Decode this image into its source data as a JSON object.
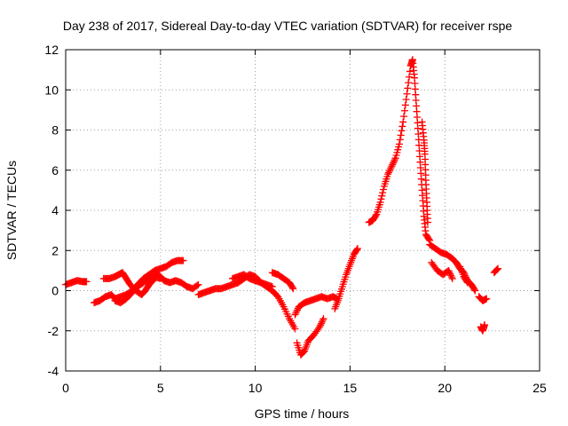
{
  "chart_data": {
    "type": "scatter",
    "title": "Day 238 of 2017, Sidereal Day-to-day VTEC variation (SDTVAR) for receiver rspe",
    "xlabel": "GPS time / hours",
    "ylabel": "SDTVAR / TECUs",
    "xlim": [
      0,
      25
    ],
    "ylim": [
      -4,
      12
    ],
    "xticks": [
      "0",
      "5",
      "10",
      "15",
      "20",
      "25"
    ],
    "yticks": [
      "-4",
      "-2",
      "0",
      "2",
      "4",
      "6",
      "8",
      "10",
      "12"
    ],
    "grid": true,
    "marker": "+",
    "color": "#ff0000",
    "series": [
      {
        "name": "segment-1",
        "points": [
          [
            0.0,
            0.3
          ],
          [
            0.3,
            0.4
          ],
          [
            0.6,
            0.5
          ],
          [
            0.9,
            0.45
          ],
          [
            1.1,
            0.45
          ]
        ]
      },
      {
        "name": "segment-2",
        "points": [
          [
            1.5,
            -0.6
          ],
          [
            1.8,
            -0.5
          ],
          [
            2.1,
            -0.3
          ],
          [
            2.4,
            -0.2
          ],
          [
            2.6,
            -0.4
          ],
          [
            2.9,
            -0.3
          ],
          [
            3.2,
            -0.2
          ],
          [
            3.5,
            0.0
          ],
          [
            3.8,
            0.3
          ],
          [
            4.1,
            0.6
          ],
          [
            4.4,
            0.8
          ],
          [
            4.7,
            1.0
          ],
          [
            5.0,
            1.1
          ],
          [
            5.3,
            1.2
          ],
          [
            5.6,
            1.4
          ],
          [
            5.9,
            1.5
          ],
          [
            6.2,
            1.5
          ]
        ]
      },
      {
        "name": "segment-3",
        "points": [
          [
            2.0,
            0.6
          ],
          [
            2.3,
            0.6
          ],
          [
            2.6,
            0.7
          ],
          [
            2.8,
            0.8
          ],
          [
            3.0,
            0.9
          ],
          [
            3.2,
            0.6
          ],
          [
            3.4,
            0.3
          ],
          [
            3.7,
            0.0
          ],
          [
            4.0,
            -0.2
          ],
          [
            4.2,
            0.0
          ],
          [
            4.4,
            0.3
          ],
          [
            4.6,
            0.5
          ],
          [
            4.8,
            0.8
          ],
          [
            5.0,
            0.7
          ],
          [
            5.2,
            0.5
          ],
          [
            5.5,
            0.4
          ],
          [
            5.8,
            0.5
          ],
          [
            6.1,
            0.4
          ],
          [
            6.4,
            0.2
          ],
          [
            6.7,
            0.1
          ],
          [
            7.0,
            0.3
          ]
        ]
      },
      {
        "name": "segment-4",
        "points": [
          [
            2.6,
            -0.5
          ],
          [
            2.9,
            -0.6
          ],
          [
            3.2,
            -0.4
          ],
          [
            3.5,
            -0.1
          ],
          [
            3.8,
            0.2
          ],
          [
            4.1,
            0.4
          ],
          [
            4.4,
            0.6
          ],
          [
            4.7,
            0.7
          ],
          [
            5.0,
            0.6
          ]
        ]
      },
      {
        "name": "segment-5",
        "points": [
          [
            7.0,
            -0.2
          ],
          [
            7.3,
            -0.1
          ],
          [
            7.6,
            0.0
          ],
          [
            7.9,
            0.1
          ],
          [
            8.2,
            0.1
          ],
          [
            8.5,
            0.2
          ],
          [
            8.8,
            0.3
          ],
          [
            9.1,
            0.4
          ],
          [
            9.4,
            0.6
          ],
          [
            9.7,
            0.8
          ],
          [
            10.0,
            0.7
          ],
          [
            10.3,
            0.4
          ],
          [
            10.6,
            0.2
          ],
          [
            10.9,
            0.0
          ],
          [
            11.2,
            -0.3
          ],
          [
            11.5,
            -0.8
          ],
          [
            11.8,
            -1.4
          ],
          [
            12.1,
            -1.9
          ]
        ]
      },
      {
        "name": "segment-6",
        "points": [
          [
            8.8,
            0.6
          ],
          [
            9.1,
            0.7
          ],
          [
            9.4,
            0.8
          ],
          [
            9.7,
            0.6
          ],
          [
            10.0,
            0.5
          ],
          [
            10.3,
            0.4
          ],
          [
            10.6,
            0.3
          ],
          [
            10.9,
            0.2
          ]
        ]
      },
      {
        "name": "segment-7",
        "points": [
          [
            10.9,
            0.9
          ],
          [
            11.2,
            0.8
          ],
          [
            11.5,
            0.6
          ],
          [
            11.8,
            0.4
          ],
          [
            12.0,
            0.1
          ]
        ]
      },
      {
        "name": "segment-8",
        "points": [
          [
            12.2,
            -2.6
          ],
          [
            12.4,
            -3.2
          ],
          [
            12.6,
            -3.0
          ],
          [
            12.8,
            -2.5
          ],
          [
            13.1,
            -2.2
          ],
          [
            13.4,
            -1.8
          ],
          [
            13.6,
            -1.4
          ]
        ]
      },
      {
        "name": "segment-9",
        "points": [
          [
            12.1,
            -1.2
          ],
          [
            12.3,
            -0.8
          ],
          [
            12.6,
            -0.6
          ],
          [
            12.9,
            -0.5
          ],
          [
            13.2,
            -0.4
          ],
          [
            13.5,
            -0.3
          ],
          [
            13.8,
            -0.4
          ],
          [
            14.1,
            -0.3
          ],
          [
            14.3,
            -0.4
          ]
        ]
      },
      {
        "name": "segment-10",
        "points": [
          [
            14.2,
            -0.9
          ],
          [
            14.4,
            -0.4
          ],
          [
            14.6,
            0.2
          ],
          [
            14.8,
            0.8
          ],
          [
            15.0,
            1.3
          ],
          [
            15.2,
            1.8
          ],
          [
            15.4,
            2.1
          ]
        ]
      },
      {
        "name": "segment-11",
        "points": [
          [
            16.0,
            3.4
          ],
          [
            16.2,
            3.5
          ],
          [
            16.4,
            3.8
          ],
          [
            16.6,
            4.4
          ],
          [
            16.8,
            5.2
          ],
          [
            17.0,
            5.8
          ],
          [
            17.2,
            6.2
          ],
          [
            17.4,
            6.6
          ],
          [
            17.6,
            7.3
          ],
          [
            17.8,
            8.4
          ],
          [
            18.0,
            9.8
          ],
          [
            18.2,
            11.2
          ],
          [
            18.3,
            11.5
          ]
        ]
      },
      {
        "name": "segment-12",
        "points": [
          [
            18.3,
            11.5
          ],
          [
            18.4,
            10.6
          ],
          [
            18.5,
            9.2
          ],
          [
            18.6,
            7.8
          ],
          [
            18.7,
            6.4
          ],
          [
            18.8,
            5.0
          ],
          [
            18.9,
            3.7
          ],
          [
            19.0,
            2.8
          ],
          [
            19.2,
            2.5
          ]
        ]
      },
      {
        "name": "segment-13",
        "points": [
          [
            18.8,
            8.4
          ],
          [
            18.9,
            7.5
          ],
          [
            18.95,
            6.8
          ],
          [
            19.0,
            5.5
          ],
          [
            19.05,
            4.4
          ],
          [
            19.1,
            3.4
          ]
        ]
      },
      {
        "name": "segment-14",
        "points": [
          [
            19.2,
            2.3
          ],
          [
            19.5,
            2.1
          ],
          [
            19.8,
            1.9
          ],
          [
            20.1,
            1.8
          ],
          [
            20.4,
            1.6
          ],
          [
            20.6,
            1.4
          ],
          [
            20.8,
            1.1
          ],
          [
            21.0,
            0.9
          ],
          [
            21.2,
            0.5
          ],
          [
            21.4,
            0.3
          ],
          [
            21.6,
            0.0
          ]
        ]
      },
      {
        "name": "segment-15",
        "points": [
          [
            19.3,
            1.4
          ],
          [
            19.6,
            1.0
          ],
          [
            19.9,
            0.8
          ],
          [
            20.2,
            1.0
          ],
          [
            20.4,
            0.6
          ]
        ]
      },
      {
        "name": "segment-16",
        "points": [
          [
            20.8,
            1.2
          ],
          [
            21.0,
            0.7
          ],
          [
            21.2,
            0.4
          ]
        ]
      },
      {
        "name": "segment-17",
        "points": [
          [
            21.8,
            -0.3
          ],
          [
            22.0,
            -0.5
          ],
          [
            22.2,
            -0.4
          ]
        ]
      },
      {
        "name": "segment-18",
        "points": [
          [
            21.9,
            -1.8
          ],
          [
            22.0,
            -2.0
          ],
          [
            22.1,
            -1.7
          ]
        ]
      },
      {
        "name": "segment-19",
        "points": [
          [
            22.6,
            0.9
          ],
          [
            22.8,
            1.1
          ]
        ]
      }
    ]
  }
}
